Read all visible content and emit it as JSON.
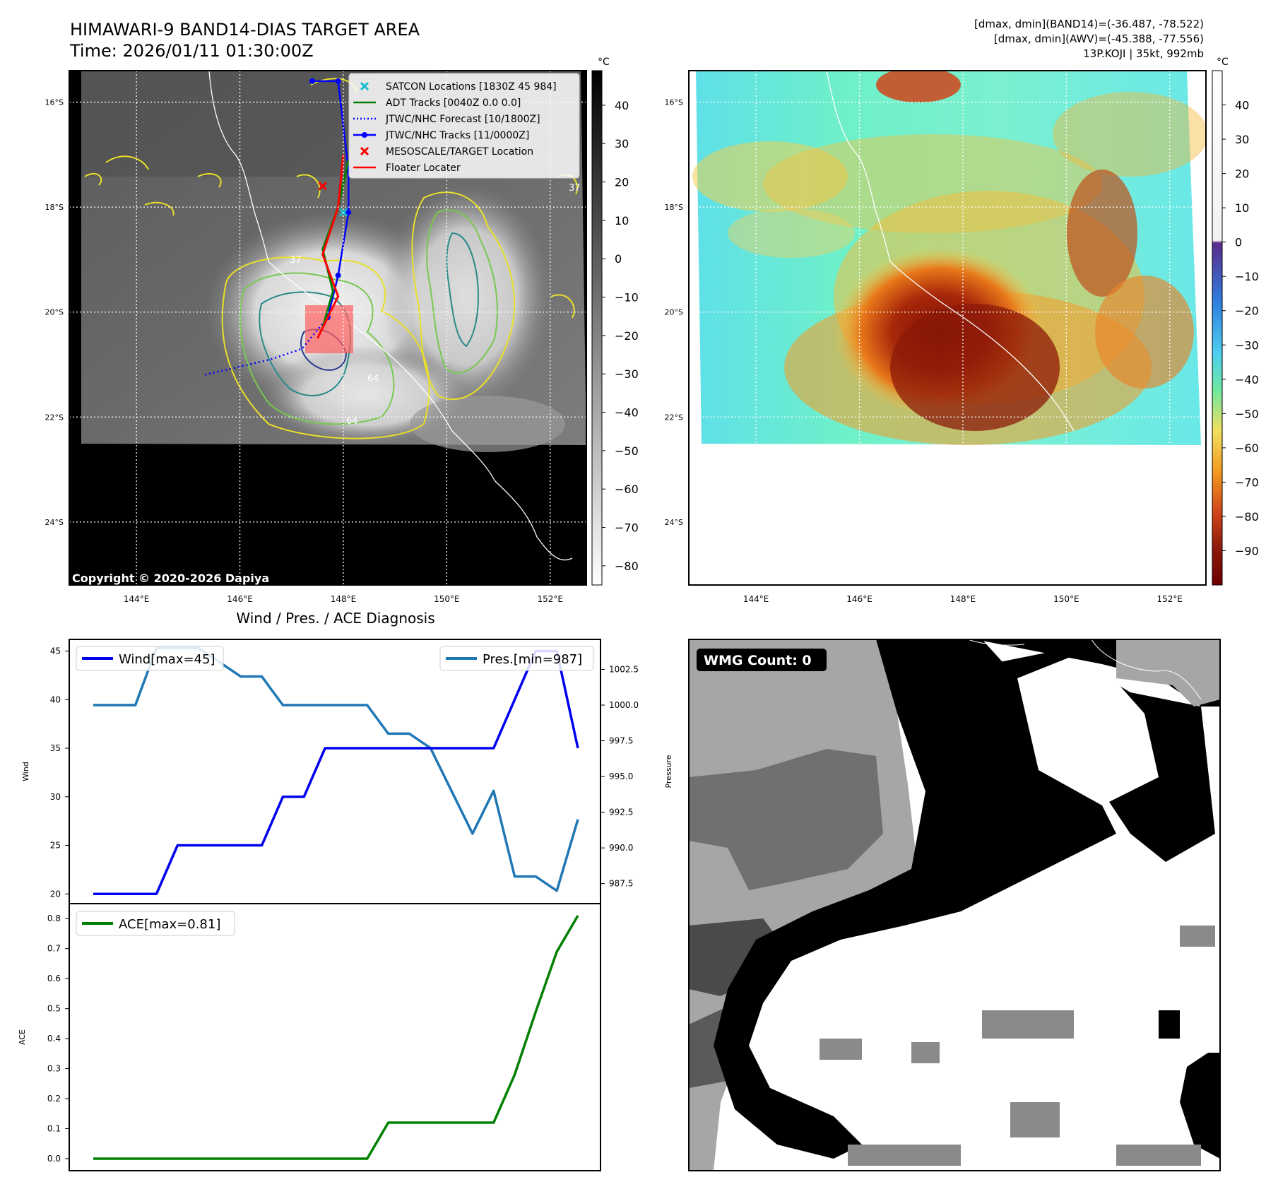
{
  "figure": {
    "title_line1": "HIMAWARI-9 BAND14-DIAS TARGET AREA",
    "title_line2": "Time: 2026/01/11 01:30:00Z",
    "info_line1": "[dmax, dmin](BAND14)=(-36.487, -78.522)",
    "info_line2": "[dmax, dmin](AWV)=(-45.388, -77.556)",
    "info_line3": "13P.KOJI | 35kt, 992mb",
    "copyright": "Copyright © 2020-2026 Dapiya",
    "wmg_label": "WMG Count: 0",
    "colorbar_unit": "°C"
  },
  "map": {
    "lat_labels": [
      "16°S",
      "18°S",
      "20°S",
      "22°S",
      "24°S"
    ],
    "lon_labels": [
      "144°E",
      "146°E",
      "148°E",
      "150°E",
      "152°E"
    ],
    "lat_values": [
      -16,
      -18,
      -20,
      -22,
      -24
    ],
    "lon_values": [
      144,
      146,
      148,
      150,
      152
    ],
    "lat_range": [
      -25.2,
      -15.4
    ],
    "lon_range": [
      142.7,
      152.7
    ],
    "legend": [
      {
        "label": "SATCON Locations [1830Z 45 984]",
        "style": "x",
        "color": "#17becf"
      },
      {
        "label": "ADT Tracks [0040Z 0.0 0.0]",
        "style": "line",
        "color": "#008000"
      },
      {
        "label": "JTWC/NHC Forecast [10/1800Z]",
        "style": "dotted",
        "color": "#0000ff"
      },
      {
        "label": "JTWC/NHC Tracks [11/0000Z]",
        "style": "line-dot",
        "color": "#0000ff"
      },
      {
        "label": "MESOSCALE/TARGET Location",
        "style": "x",
        "color": "#ff0000"
      },
      {
        "label": "Floater Locater",
        "style": "line",
        "color": "#ff0000"
      }
    ],
    "cbar1_ticks": [
      "40",
      "30",
      "20",
      "10",
      "0",
      "−10",
      "−20",
      "−30",
      "−40",
      "−50",
      "−60",
      "−70",
      "−80"
    ],
    "cbar1_values": [
      40,
      30,
      20,
      10,
      0,
      -10,
      -20,
      -30,
      -40,
      -50,
      -60,
      -70,
      -80
    ],
    "cbar1_range": [
      -85,
      49
    ],
    "cbar2_ticks": [
      "40",
      "30",
      "20",
      "10",
      "0",
      "−10",
      "−20",
      "−30",
      "−40",
      "−50",
      "−60",
      "−70",
      "−80",
      "−90"
    ],
    "cbar2_values": [
      40,
      30,
      20,
      10,
      0,
      -10,
      -20,
      -30,
      -40,
      -50,
      -60,
      -70,
      -80,
      -90
    ],
    "cbar2_range": [
      -100,
      50
    ],
    "contour_labels": [
      "37",
      "64",
      "64",
      "37"
    ],
    "jtwc_track": [
      [
        147.4,
        -15.6
      ],
      [
        147.9,
        -15.6
      ],
      [
        148.1,
        -17.3
      ],
      [
        148.1,
        -18.1
      ],
      [
        147.9,
        -19.3
      ],
      [
        147.7,
        -20.1
      ]
    ],
    "jtwc_forecast": [
      [
        147.7,
        -20.1
      ],
      [
        147.2,
        -20.7
      ],
      [
        146.6,
        -20.9
      ],
      [
        145.3,
        -21.2
      ]
    ],
    "adt_track": [
      [
        148.1,
        -17.1
      ],
      [
        147.9,
        -18.0
      ],
      [
        147.6,
        -18.8
      ],
      [
        147.8,
        -19.6
      ],
      [
        147.6,
        -20.3
      ]
    ],
    "floater_track": [
      [
        148.0,
        -17.0
      ],
      [
        147.9,
        -18.0
      ],
      [
        147.6,
        -18.9
      ],
      [
        147.9,
        -19.7
      ],
      [
        147.5,
        -20.5
      ]
    ],
    "satcon_points": [
      [
        148.0,
        -18.1
      ]
    ],
    "target_point": [
      [
        147.6,
        -17.6
      ]
    ]
  },
  "chart_data": [
    {
      "type": "line",
      "title": "Wind / Pres. / ACE Diagnosis",
      "ylabel": "Wind",
      "y2label": "Pressure",
      "ylim": [
        19,
        46.2
      ],
      "y2lim": [
        986.1,
        1004.6
      ],
      "yticks": [
        20,
        25,
        30,
        35,
        40,
        45
      ],
      "y2ticks": [
        "987.5",
        "990.0",
        "992.5",
        "995.0",
        "997.5",
        "1000.0",
        "1002.5"
      ],
      "y2tick_values": [
        987.5,
        990,
        992.5,
        995,
        997.5,
        1000,
        1002.5
      ],
      "series": [
        {
          "name": "Wind[max=45]",
          "color": "#0000ee",
          "axis": "left",
          "values": [
            20,
            20,
            20,
            20,
            25,
            25,
            25,
            25,
            25,
            30,
            30,
            35,
            35,
            35,
            35,
            35,
            35,
            35,
            35,
            35,
            40,
            45,
            45,
            35
          ]
        },
        {
          "name": "Pres.[min=987]",
          "color": "#1f77b4",
          "axis": "right",
          "values": [
            1000,
            1000,
            1000,
            1004,
            1004,
            1004,
            1003,
            1002,
            1002,
            1000,
            1000,
            1000,
            1000,
            1000,
            998,
            998,
            997,
            994,
            991,
            994,
            988,
            988,
            987,
            992
          ]
        }
      ]
    },
    {
      "type": "line",
      "ylabel": "ACE",
      "ylim": [
        -0.04,
        0.85
      ],
      "yticks": [
        "0.0",
        "0.1",
        "0.2",
        "0.3",
        "0.4",
        "0.5",
        "0.6",
        "0.7",
        "0.8"
      ],
      "ytick_values": [
        0,
        0.1,
        0.2,
        0.3,
        0.4,
        0.5,
        0.6,
        0.7,
        0.8
      ],
      "series": [
        {
          "name": "ACE[max=0.81]",
          "color": "#008000",
          "values": [
            0,
            0,
            0,
            0,
            0,
            0,
            0,
            0,
            0,
            0,
            0,
            0,
            0,
            0,
            0.12,
            0.12,
            0.12,
            0.12,
            0.12,
            0.12,
            0.28,
            0.49,
            0.69,
            0.81
          ]
        }
      ]
    }
  ],
  "colors": {
    "track_blue": "#0000ff",
    "adt_green": "#008000",
    "floater_red": "#ff0000",
    "satcon_cyan": "#17becf",
    "contour_yellow": "#e8e02a",
    "contour_green": "#78c850",
    "contour_teal": "#2a8a8a",
    "contour_navy": "#2a3a8a"
  }
}
